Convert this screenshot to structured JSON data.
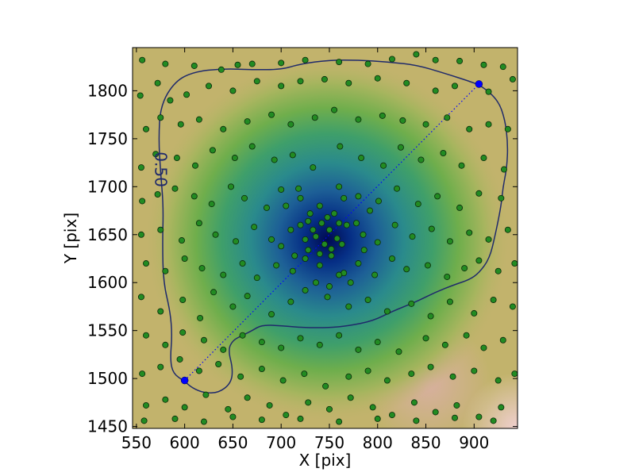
{
  "chart_data": {
    "type": "scatter",
    "title": "",
    "xlabel": "X [pix]",
    "ylabel": "Y [pix]",
    "xlim": [
      546,
      945
    ],
    "ylim": [
      1448,
      1845
    ],
    "xticks": [
      550,
      600,
      650,
      700,
      750,
      800,
      850,
      900
    ],
    "yticks": [
      1450,
      1500,
      1550,
      1600,
      1650,
      1700,
      1750,
      1800
    ],
    "grid": false,
    "background": "density map: dark blue center near (745, 1645), through teal and green, to tan and pink at the edges",
    "contour": {
      "level_label": "0.50",
      "color": "#1f2a6b",
      "points": [
        [
          600,
          1497
        ],
        [
          588,
          1505
        ],
        [
          585,
          1520
        ],
        [
          587,
          1545
        ],
        [
          585,
          1570
        ],
        [
          578,
          1600
        ],
        [
          577,
          1640
        ],
        [
          578,
          1680
        ],
        [
          575,
          1715
        ],
        [
          573,
          1750
        ],
        [
          575,
          1785
        ],
        [
          590,
          1810
        ],
        [
          610,
          1820
        ],
        [
          640,
          1823
        ],
        [
          670,
          1822
        ],
        [
          700,
          1822
        ],
        [
          720,
          1828
        ],
        [
          750,
          1832
        ],
        [
          780,
          1832
        ],
        [
          810,
          1830
        ],
        [
          840,
          1827
        ],
        [
          870,
          1818
        ],
        [
          895,
          1810
        ],
        [
          908,
          1805
        ],
        [
          925,
          1790
        ],
        [
          932,
          1770
        ],
        [
          935,
          1745
        ],
        [
          934,
          1720
        ],
        [
          930,
          1700
        ],
        [
          928,
          1680
        ],
        [
          922,
          1650
        ],
        [
          916,
          1625
        ],
        [
          905,
          1610
        ],
        [
          895,
          1603
        ],
        [
          880,
          1598
        ],
        [
          860,
          1590
        ],
        [
          840,
          1580
        ],
        [
          815,
          1570
        ],
        [
          795,
          1560
        ],
        [
          770,
          1555
        ],
        [
          750,
          1553
        ],
        [
          725,
          1553
        ],
        [
          700,
          1555
        ],
        [
          680,
          1556
        ],
        [
          670,
          1550
        ],
        [
          660,
          1545
        ],
        [
          650,
          1540
        ],
        [
          645,
          1530
        ],
        [
          650,
          1510
        ],
        [
          648,
          1495
        ],
        [
          635,
          1485
        ],
        [
          620,
          1485
        ],
        [
          608,
          1490
        ],
        [
          600,
          1497
        ]
      ]
    },
    "line_endpoints": {
      "color": "#0000ff",
      "points": [
        [
          600,
          1498
        ],
        [
          905,
          1807
        ]
      ]
    },
    "series": [
      {
        "marker_color": "#228b22",
        "points": [
          [
            556,
            1832
          ],
          [
            580,
            1828
          ],
          [
            610,
            1826
          ],
          [
            638,
            1822
          ],
          [
            655,
            1827
          ],
          [
            670,
            1828
          ],
          [
            700,
            1829
          ],
          [
            725,
            1832
          ],
          [
            760,
            1830
          ],
          [
            790,
            1828
          ],
          [
            815,
            1833
          ],
          [
            840,
            1838
          ],
          [
            860,
            1832
          ],
          [
            885,
            1831
          ],
          [
            910,
            1827
          ],
          [
            930,
            1825
          ],
          [
            940,
            1812
          ],
          [
            554,
            1795
          ],
          [
            572,
            1808
          ],
          [
            585,
            1790
          ],
          [
            602,
            1796
          ],
          [
            625,
            1805
          ],
          [
            650,
            1800
          ],
          [
            675,
            1810
          ],
          [
            700,
            1805
          ],
          [
            720,
            1810
          ],
          [
            745,
            1812
          ],
          [
            770,
            1808
          ],
          [
            800,
            1813
          ],
          [
            830,
            1808
          ],
          [
            860,
            1800
          ],
          [
            880,
            1805
          ],
          [
            915,
            1799
          ],
          [
            560,
            1760
          ],
          [
            575,
            1772
          ],
          [
            596,
            1765
          ],
          [
            615,
            1770
          ],
          [
            640,
            1760
          ],
          [
            665,
            1768
          ],
          [
            690,
            1775
          ],
          [
            710,
            1765
          ],
          [
            735,
            1772
          ],
          [
            755,
            1780
          ],
          [
            780,
            1770
          ],
          [
            805,
            1774
          ],
          [
            826,
            1769
          ],
          [
            850,
            1765
          ],
          [
            872,
            1772
          ],
          [
            895,
            1760
          ],
          [
            915,
            1765
          ],
          [
            935,
            1760
          ],
          [
            555,
            1720
          ],
          [
            570,
            1734
          ],
          [
            592,
            1730
          ],
          [
            611,
            1722
          ],
          [
            629,
            1738
          ],
          [
            652,
            1730
          ],
          [
            670,
            1742
          ],
          [
            693,
            1728
          ],
          [
            712,
            1733
          ],
          [
            733,
            1720
          ],
          [
            761,
            1742
          ],
          [
            783,
            1730
          ],
          [
            806,
            1722
          ],
          [
            824,
            1741
          ],
          [
            845,
            1728
          ],
          [
            868,
            1735
          ],
          [
            887,
            1722
          ],
          [
            910,
            1730
          ],
          [
            931,
            1718
          ],
          [
            556,
            1685
          ],
          [
            572,
            1692
          ],
          [
            590,
            1698
          ],
          [
            610,
            1690
          ],
          [
            628,
            1682
          ],
          [
            648,
            1700
          ],
          [
            662,
            1688
          ],
          [
            685,
            1678
          ],
          [
            700,
            1697
          ],
          [
            720,
            1688
          ],
          [
            740,
            1680
          ],
          [
            760,
            1700
          ],
          [
            780,
            1690
          ],
          [
            801,
            1685
          ],
          [
            820,
            1698
          ],
          [
            842,
            1682
          ],
          [
            862,
            1690
          ],
          [
            885,
            1678
          ],
          [
            905,
            1693
          ],
          [
            928,
            1688
          ],
          [
            555,
            1650
          ],
          [
            575,
            1655
          ],
          [
            597,
            1644
          ],
          [
            615,
            1662
          ],
          [
            632,
            1650
          ],
          [
            653,
            1643
          ],
          [
            672,
            1658
          ],
          [
            690,
            1645
          ],
          [
            710,
            1655
          ],
          [
            728,
            1664
          ],
          [
            736,
            1648
          ],
          [
            745,
            1640
          ],
          [
            750,
            1655
          ],
          [
            758,
            1646
          ],
          [
            768,
            1660
          ],
          [
            785,
            1650
          ],
          [
            800,
            1642
          ],
          [
            818,
            1660
          ],
          [
            836,
            1648
          ],
          [
            856,
            1656
          ],
          [
            875,
            1643
          ],
          [
            895,
            1652
          ],
          [
            915,
            1645
          ],
          [
            935,
            1655
          ],
          [
            560,
            1620
          ],
          [
            580,
            1612
          ],
          [
            600,
            1625
          ],
          [
            618,
            1615
          ],
          [
            640,
            1608
          ],
          [
            660,
            1620
          ],
          [
            675,
            1605
          ],
          [
            695,
            1618
          ],
          [
            712,
            1612
          ],
          [
            725,
            1625
          ],
          [
            740,
            1618
          ],
          [
            752,
            1628
          ],
          [
            765,
            1610
          ],
          [
            780,
            1620
          ],
          [
            797,
            1608
          ],
          [
            815,
            1625
          ],
          [
            830,
            1614
          ],
          [
            852,
            1618
          ],
          [
            872,
            1606
          ],
          [
            890,
            1615
          ],
          [
            905,
            1623
          ],
          [
            925,
            1612
          ],
          [
            942,
            1620
          ],
          [
            555,
            1585
          ],
          [
            575,
            1570
          ],
          [
            598,
            1582
          ],
          [
            616,
            1563
          ],
          [
            630,
            1590
          ],
          [
            650,
            1575
          ],
          [
            665,
            1586
          ],
          [
            690,
            1567
          ],
          [
            710,
            1580
          ],
          [
            725,
            1592
          ],
          [
            748,
            1585
          ],
          [
            770,
            1575
          ],
          [
            790,
            1582
          ],
          [
            810,
            1570
          ],
          [
            835,
            1578
          ],
          [
            855,
            1565
          ],
          [
            875,
            1580
          ],
          [
            900,
            1568
          ],
          [
            920,
            1582
          ],
          [
            940,
            1575
          ],
          [
            560,
            1545
          ],
          [
            580,
            1535
          ],
          [
            598,
            1548
          ],
          [
            620,
            1540
          ],
          [
            640,
            1530
          ],
          [
            660,
            1545
          ],
          [
            680,
            1538
          ],
          [
            700,
            1532
          ],
          [
            720,
            1542
          ],
          [
            740,
            1535
          ],
          [
            760,
            1545
          ],
          [
            780,
            1530
          ],
          [
            800,
            1538
          ],
          [
            822,
            1528
          ],
          [
            850,
            1542
          ],
          [
            870,
            1535
          ],
          [
            892,
            1545
          ],
          [
            910,
            1532
          ],
          [
            930,
            1540
          ],
          [
            556,
            1505
          ],
          [
            575,
            1512
          ],
          [
            595,
            1520
          ],
          [
            615,
            1508
          ],
          [
            635,
            1515
          ],
          [
            658,
            1502
          ],
          [
            680,
            1510
          ],
          [
            702,
            1498
          ],
          [
            724,
            1505
          ],
          [
            746,
            1492
          ],
          [
            770,
            1502
          ],
          [
            790,
            1508
          ],
          [
            810,
            1498
          ],
          [
            835,
            1505
          ],
          [
            855,
            1512
          ],
          [
            878,
            1502
          ],
          [
            900,
            1508
          ],
          [
            925,
            1498
          ],
          [
            942,
            1505
          ],
          [
            560,
            1472
          ],
          [
            580,
            1478
          ],
          [
            600,
            1470
          ],
          [
            622,
            1483
          ],
          [
            645,
            1468
          ],
          [
            665,
            1480
          ],
          [
            688,
            1472
          ],
          [
            705,
            1462
          ],
          [
            728,
            1475
          ],
          [
            750,
            1468
          ],
          [
            772,
            1480
          ],
          [
            795,
            1470
          ],
          [
            815,
            1462
          ],
          [
            838,
            1475
          ],
          [
            860,
            1465
          ],
          [
            882,
            1472
          ],
          [
            905,
            1460
          ],
          [
            928,
            1470
          ],
          [
            558,
            1456
          ],
          [
            590,
            1458
          ],
          [
            620,
            1455
          ],
          [
            650,
            1460
          ],
          [
            680,
            1457
          ],
          [
            720,
            1458
          ],
          [
            760,
            1455
          ],
          [
            800,
            1458
          ],
          [
            840,
            1456
          ],
          [
            880,
            1459
          ],
          [
            920,
            1456
          ],
          [
            705,
            1680
          ],
          [
            718,
            1698
          ],
          [
            730,
            1672
          ],
          [
            742,
            1662
          ],
          [
            755,
            1672
          ],
          [
            765,
            1688
          ],
          [
            778,
            1662
          ],
          [
            792,
            1675
          ],
          [
            700,
            1638
          ],
          [
            714,
            1628
          ],
          [
            728,
            1634
          ],
          [
            736,
            1600
          ],
          [
            750,
            1596
          ],
          [
            760,
            1608
          ],
          [
            772,
            1600
          ],
          [
            786,
            1634
          ],
          [
            720,
            1660
          ],
          [
            733,
            1655
          ],
          [
            748,
            1668
          ],
          [
            760,
            1662
          ],
          [
            740,
            1630
          ],
          [
            752,
            1635
          ],
          [
            763,
            1640
          ],
          [
            725,
            1645
          ]
        ]
      }
    ]
  }
}
